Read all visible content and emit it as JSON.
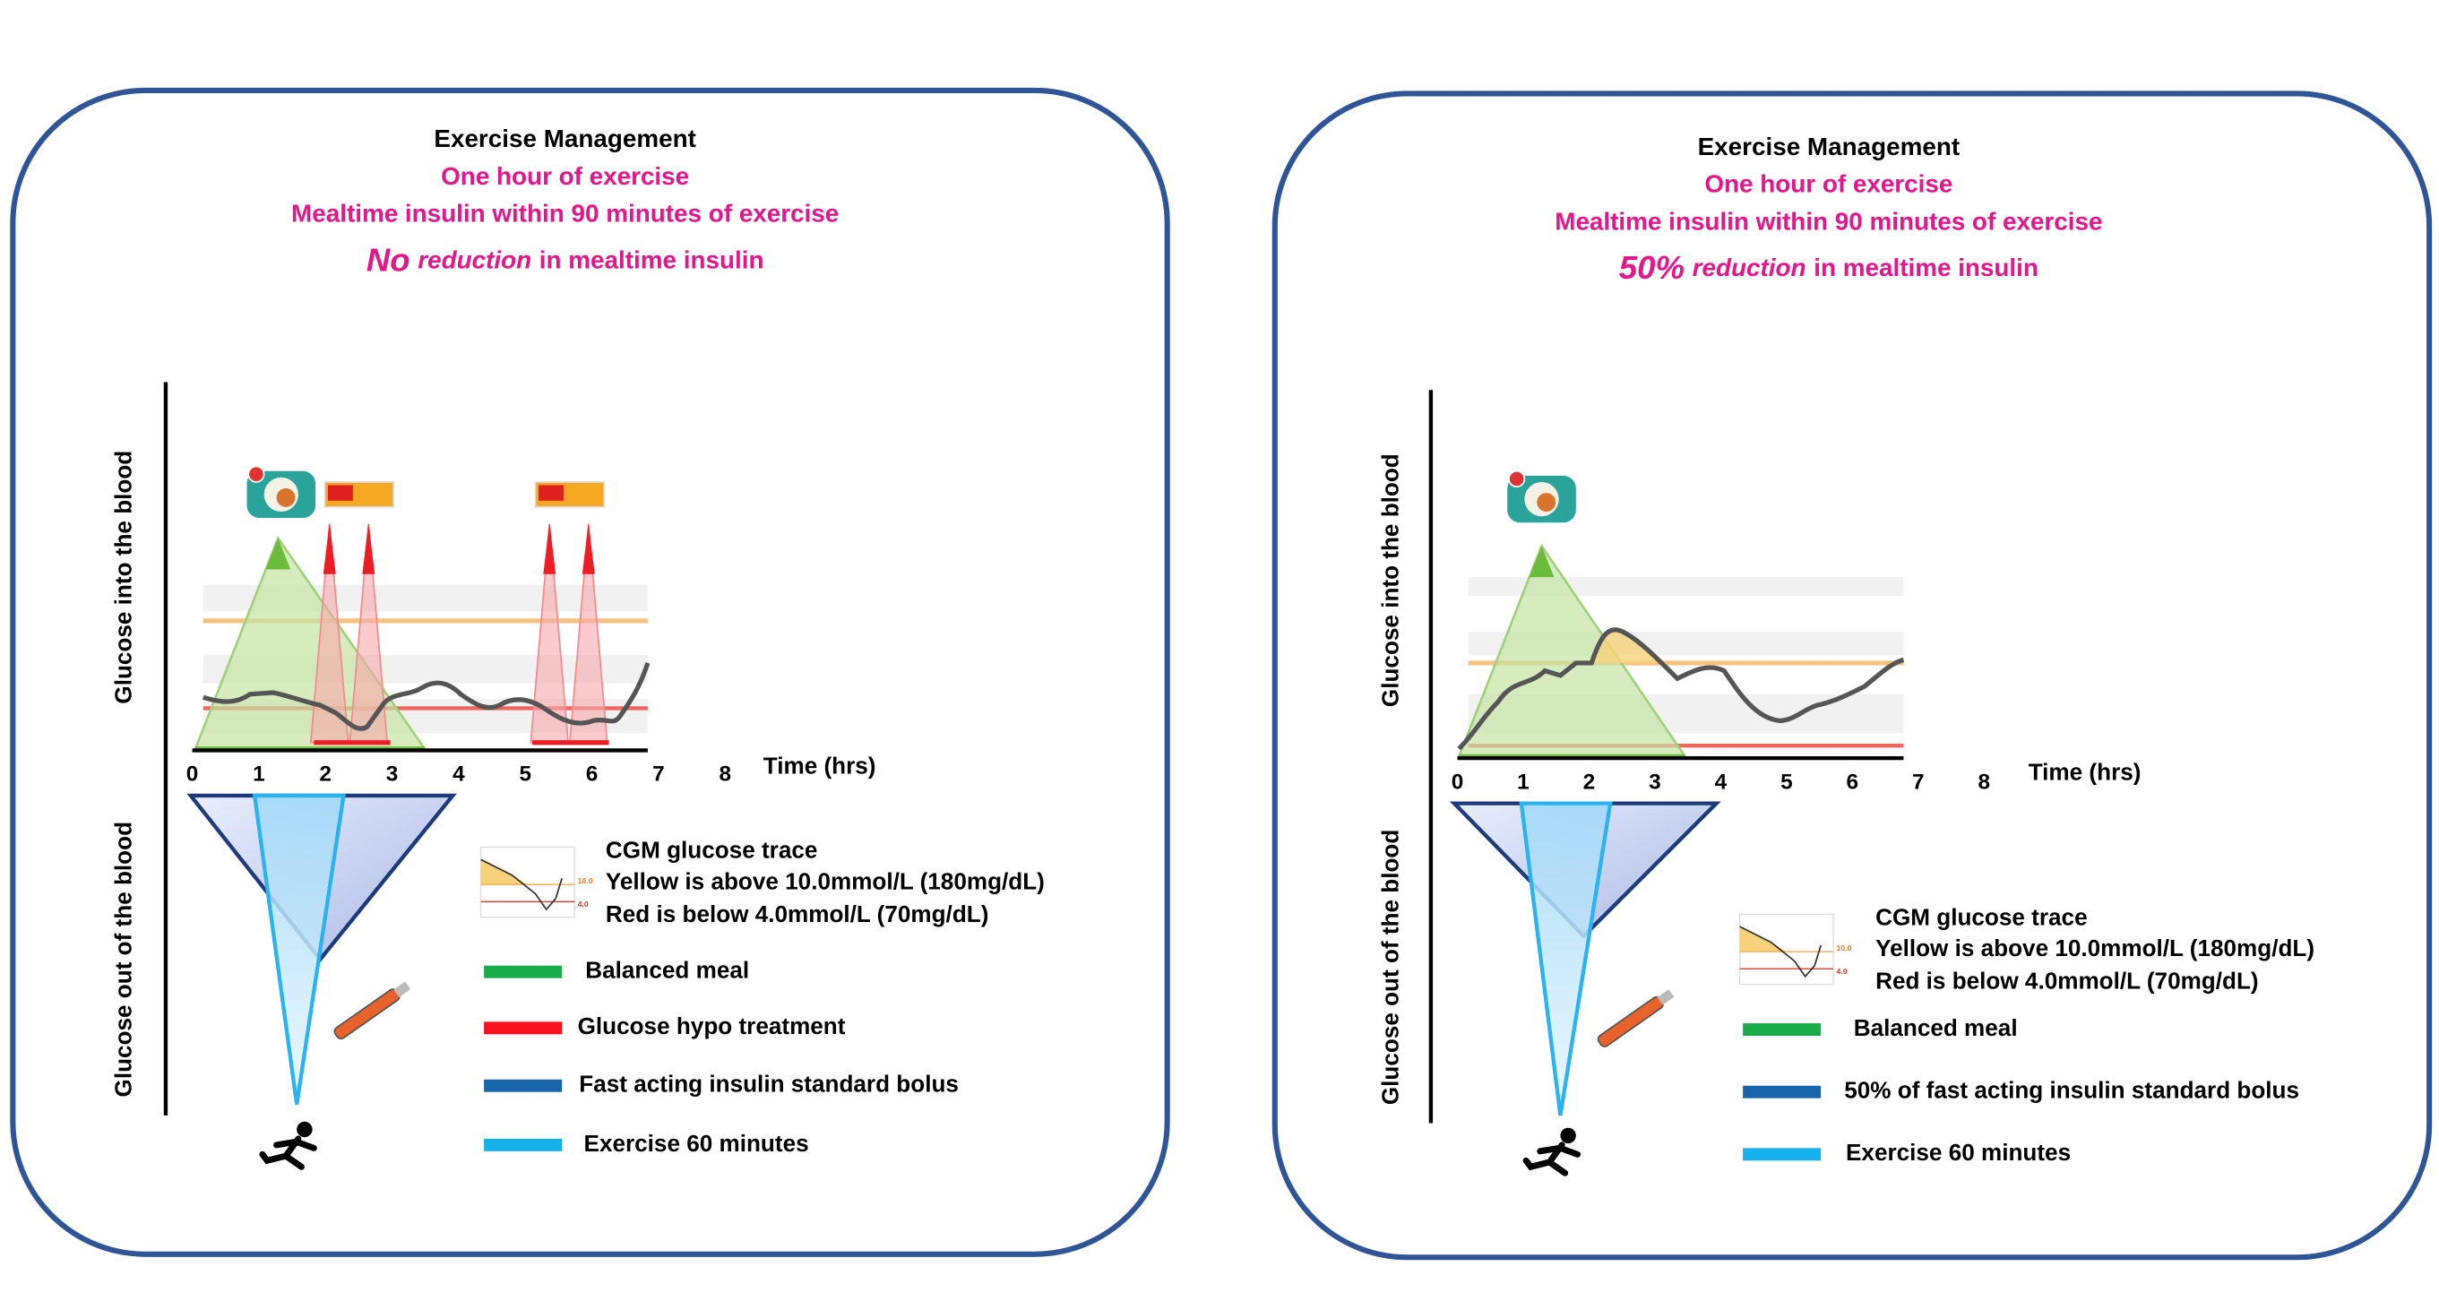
{
  "panels": [
    {
      "title": "Exercise Management",
      "subtitle": "One hour of exercise",
      "timing": "Mealtime insulin within 90 minutes of exercise",
      "reduction": {
        "amount": "No",
        "word": "reduction",
        "rest": "in mealtime insulin"
      },
      "y_label_top": "Glucose into the blood",
      "y_label_bottom": "Glucose out of the blood",
      "x_label": "Time (hrs)",
      "x_ticks": [
        0,
        1,
        2,
        3,
        4,
        5,
        6,
        7,
        8
      ],
      "legend": {
        "cgm": {
          "title": "CGM glucose trace",
          "yellow": "Yellow is above 10.0mmol/L (180mg/dL)",
          "red": "Red is below 4.0mmol/L (70mg/dL)",
          "icon_high": "10.0",
          "icon_low": "4.0"
        },
        "items": [
          {
            "label": "Balanced meal",
            "color": "#1aab4b"
          },
          {
            "label": "Glucose hypo treatment",
            "color": "#f5141e"
          },
          {
            "label": "Fast acting insulin standard bolus",
            "color": "#1764ab"
          },
          {
            "label": "Exercise 60 minutes",
            "color": "#14b1ec"
          }
        ]
      }
    },
    {
      "title": "Exercise Management",
      "subtitle": "One hour of exercise",
      "timing": "Mealtime insulin within 90 minutes of exercise",
      "reduction": {
        "amount": "50%",
        "word": "reduction",
        "rest": "in mealtime insulin"
      },
      "y_label_top": "Glucose into the blood",
      "y_label_bottom": "Glucose out of the blood",
      "x_label": "Time (hrs)",
      "x_ticks": [
        0,
        1,
        2,
        3,
        4,
        5,
        6,
        7,
        8
      ],
      "legend": {
        "cgm": {
          "title": "CGM glucose trace",
          "yellow": "Yellow is above 10.0mmol/L (180mg/dL)",
          "red": "Red is below 4.0mmol/L (70mg/dL)",
          "icon_high": "10.0",
          "icon_low": "4.0"
        },
        "items": [
          {
            "label": "Balanced meal",
            "color": "#1aab4b"
          },
          {
            "label": "50% of fast acting insulin standard bolus",
            "color": "#1764ab"
          },
          {
            "label": "Exercise 60 minutes",
            "color": "#14b1ec"
          }
        ]
      }
    }
  ]
}
